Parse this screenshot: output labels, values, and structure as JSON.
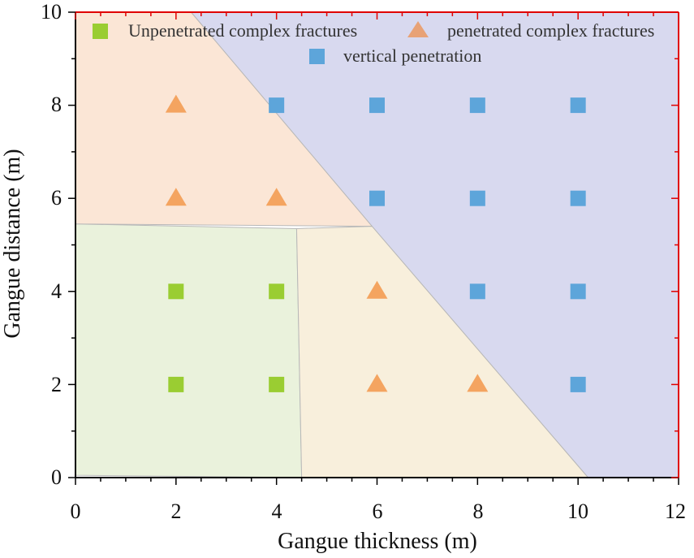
{
  "chart_data": {
    "type": "scatter",
    "title": "",
    "xlabel": "Gangue  thickness (m)",
    "ylabel": "Gangue distance (m)",
    "xlim": [
      0,
      12
    ],
    "ylim": [
      0,
      10
    ],
    "x_ticks": [
      "0",
      "2",
      "4",
      "6",
      "8",
      "10",
      "12"
    ],
    "y_ticks": [
      "0",
      "2",
      "4",
      "6",
      "8",
      "10"
    ],
    "series": [
      {
        "name": "Unpenetrated complex fractures",
        "marker": "square",
        "color": "#9ACD32",
        "points": [
          [
            2,
            4
          ],
          [
            4,
            4
          ],
          [
            2,
            2
          ],
          [
            4,
            2
          ]
        ]
      },
      {
        "name": "penetrated complex fractures",
        "marker": "triangle",
        "color": "#F4A460",
        "points": [
          [
            2,
            8
          ],
          [
            2,
            6
          ],
          [
            4,
            6
          ],
          [
            6,
            4
          ],
          [
            6,
            2
          ],
          [
            8,
            2
          ]
        ]
      },
      {
        "name": "vertical penetration",
        "marker": "square",
        "color": "#5DA5DA",
        "points": [
          [
            4,
            8
          ],
          [
            6,
            8
          ],
          [
            8,
            8
          ],
          [
            10,
            8
          ],
          [
            6,
            6
          ],
          [
            8,
            6
          ],
          [
            10,
            6
          ],
          [
            8,
            4
          ],
          [
            10,
            4
          ],
          [
            10,
            2
          ]
        ]
      }
    ],
    "regions": [
      {
        "name": "vertical-penetration-region",
        "color": "#d8d9ef",
        "polygon": [
          [
            2.3,
            10
          ],
          [
            12,
            10
          ],
          [
            12,
            0
          ],
          [
            10.2,
            0
          ],
          [
            5.9,
            5.4
          ]
        ]
      },
      {
        "name": "penetrated-upper-region",
        "color": "#fbe6d6",
        "polygon": [
          [
            0,
            10
          ],
          [
            2.3,
            10
          ],
          [
            5.9,
            5.4
          ],
          [
            0,
            5.45
          ]
        ]
      },
      {
        "name": "unpenetrated-region",
        "color": "#eaf2dc",
        "polygon": [
          [
            0,
            5.45
          ],
          [
            4.4,
            5.35
          ],
          [
            4.5,
            0
          ],
          [
            0,
            0.05
          ]
        ]
      },
      {
        "name": "penetrated-lower-region",
        "color": "#f8efdc",
        "polygon": [
          [
            4.4,
            5.35
          ],
          [
            5.9,
            5.4
          ],
          [
            10.2,
            0
          ],
          [
            4.5,
            0
          ]
        ]
      }
    ],
    "legend": "top, inside plot"
  }
}
